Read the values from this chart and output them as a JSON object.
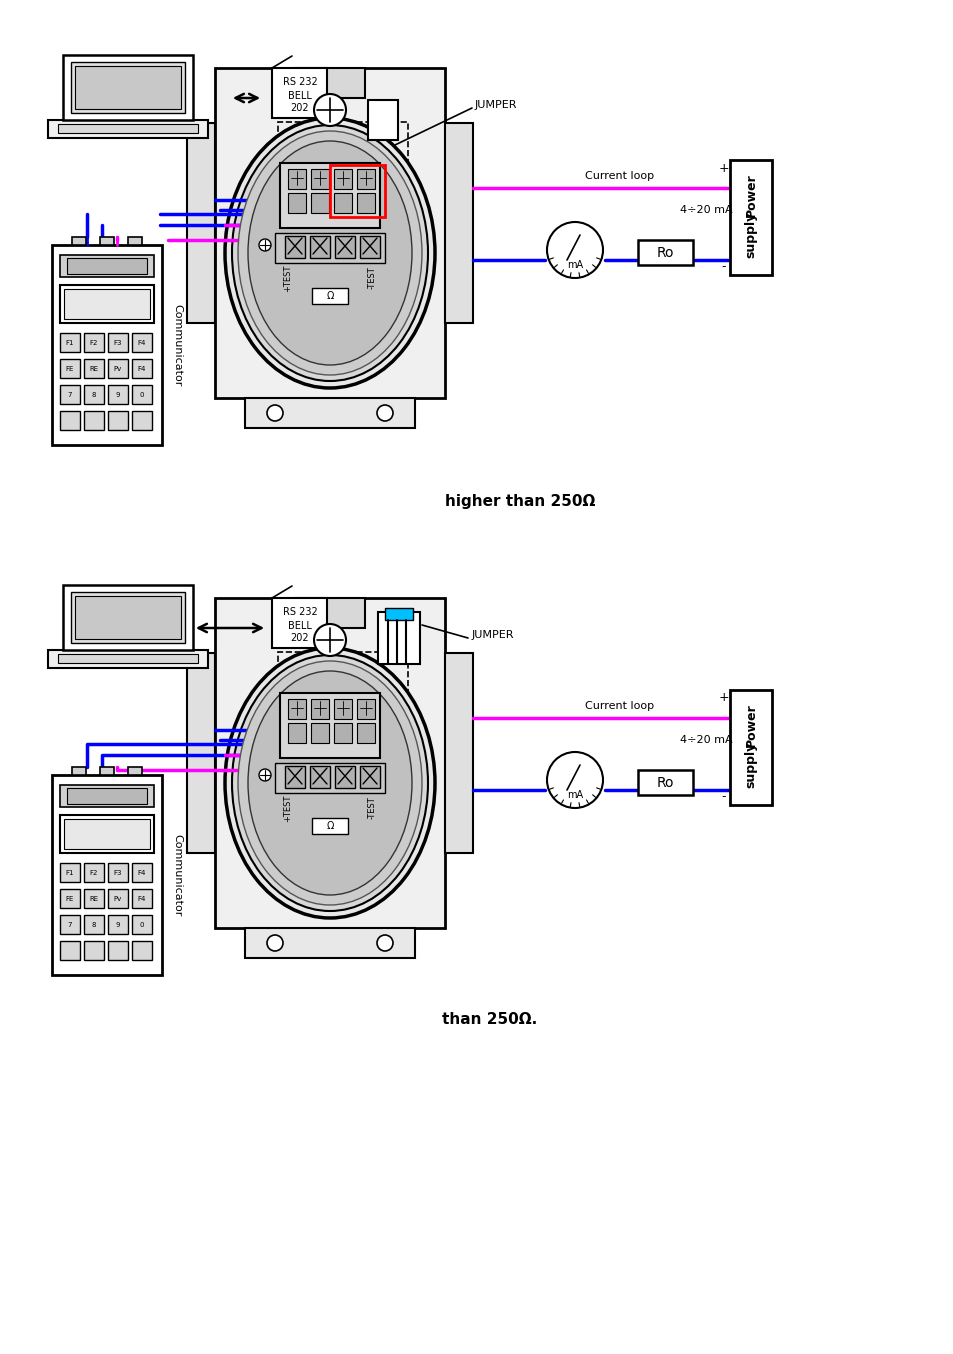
{
  "fig_width": 9.54,
  "fig_height": 13.54,
  "background": "#ffffff",
  "caption_top": "higher than 250Ω",
  "caption_bottom": "than 250Ω.",
  "current_loop_label": "Current loop",
  "mA_label": "4÷20 mA",
  "plus_label": "+",
  "minus_label": "-",
  "Ro_label": "Ro",
  "mA_meter_label": "mA",
  "jumper_label": "JUMPER",
  "rs232_line1": "RS 232",
  "rs232_line2": "BELL",
  "rs232_line3": "202",
  "power_supply_line1": "Power",
  "power_supply_line2": "supply",
  "communicator_label": "Communicator",
  "color_magenta": "#ff00ff",
  "color_blue": "#0000ff",
  "color_red": "#ff0000",
  "color_cyan": "#00bfff",
  "color_black": "#000000",
  "color_gray": "#888888",
  "color_light_gray": "#cccccc",
  "color_dark_gray": "#555555",
  "color_mid_gray": "#aaaaaa"
}
